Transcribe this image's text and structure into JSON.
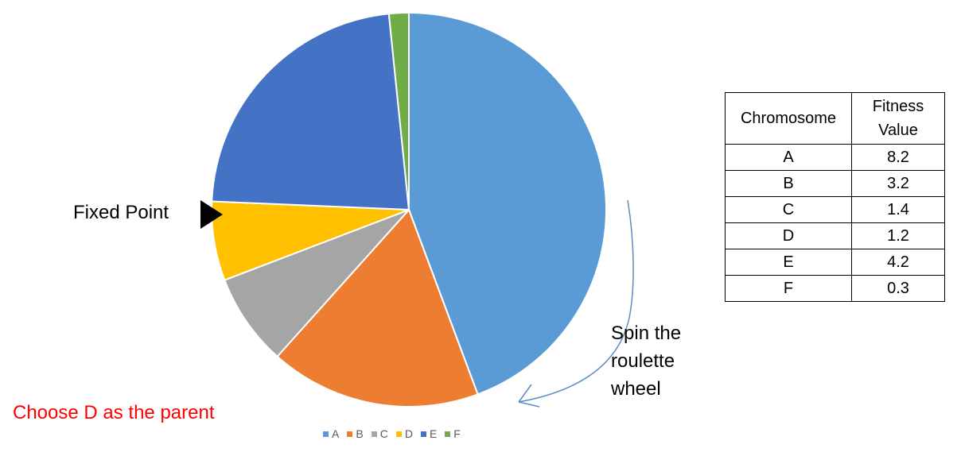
{
  "chart_data": {
    "type": "pie",
    "categories": [
      "A",
      "B",
      "C",
      "D",
      "E",
      "F"
    ],
    "values": [
      8.2,
      3.2,
      1.4,
      1.2,
      4.2,
      0.3
    ],
    "colors": [
      "#5B9BD5",
      "#ED7D31",
      "#A5A5A5",
      "#FFC000",
      "#4472C4",
      "#70AD47"
    ],
    "legend_position": "bottom"
  },
  "annotations": {
    "fixed_point": "Fixed Point",
    "spin_line1": "Spin the",
    "spin_line2": "roulette",
    "spin_line3": "wheel",
    "choose": "Choose D as the parent",
    "choose_color": "#FF0000"
  },
  "table": {
    "headers": [
      "Chromosome",
      "Fitness Value"
    ],
    "rows": [
      [
        "A",
        "8.2"
      ],
      [
        "B",
        "3.2"
      ],
      [
        "C",
        "1.4"
      ],
      [
        "D",
        "1.2"
      ],
      [
        "E",
        "4.2"
      ],
      [
        "F",
        "0.3"
      ]
    ]
  }
}
